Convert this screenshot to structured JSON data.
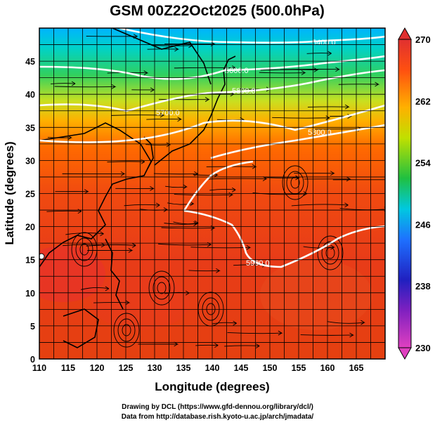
{
  "title": "GSM 00Z22Oct2025 (500.0hPa)",
  "axes": {
    "xlabel": "Longitude (degrees)",
    "ylabel": "Latitude  (degrees)",
    "xticks": [
      "110",
      "115",
      "120",
      "125",
      "130",
      "135",
      "140",
      "145",
      "150",
      "155",
      "160",
      "165"
    ],
    "yticks": [
      "0",
      "5",
      "10",
      "15",
      "20",
      "25",
      "30",
      "35",
      "40",
      "45"
    ]
  },
  "colorbar": {
    "ticks": [
      "230",
      "238",
      "246",
      "254",
      "262",
      "270"
    ],
    "colors": [
      "#e040c0",
      "#2020c0",
      "#1e90ff",
      "#00d0c0",
      "#40c020",
      "#f0e000",
      "#ff9a00",
      "#f04010",
      "#e03030"
    ]
  },
  "contours": [
    {
      "label": "5400.0"
    },
    {
      "label": "5600.0"
    },
    {
      "label": "5800.0"
    },
    {
      "label": "5700.0"
    },
    {
      "label": "5800.0"
    },
    {
      "label": "5900.0"
    }
  ],
  "credits": [
    "Drawing by DCL (https://www.gfd-dennou.org/library/dcl/)",
    "Data from http://database.rish.kyoto-u.ac.jp/arch/jmadata/"
  ],
  "chart_data": {
    "type": "heatmap",
    "title": "GSM 00Z22Oct2025 (500.0hPa)",
    "xlabel": "Longitude (degrees)",
    "ylabel": "Latitude  (degrees)",
    "xlim": [
      110,
      170
    ],
    "ylim": [
      0,
      50
    ],
    "colorbar_range": [
      230,
      270
    ],
    "colorbar_ticks": [
      230,
      238,
      246,
      254,
      262,
      270
    ],
    "contour_levels": [
      5400,
      5600,
      5700,
      5800,
      5900
    ],
    "grid": true
  }
}
